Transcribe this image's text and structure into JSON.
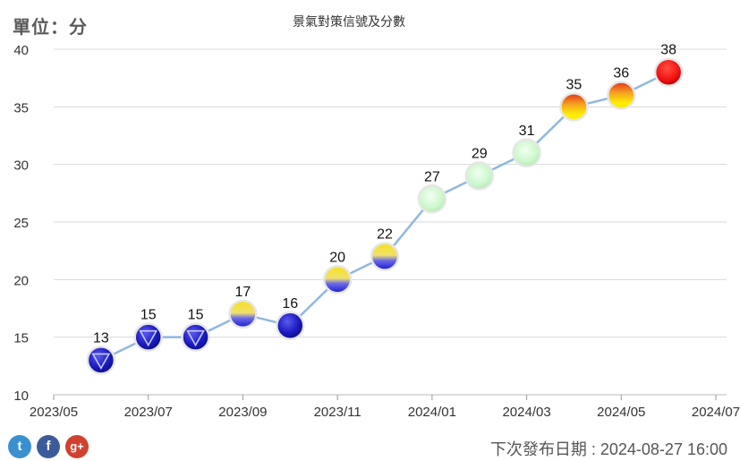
{
  "unit_label": "單位：分",
  "chart_data": {
    "type": "line",
    "title": "景氣對策信號及分數",
    "x": [
      "2023-06",
      "2023-07",
      "2023-08",
      "2023-09",
      "2023-10",
      "2023-11",
      "2023-12",
      "2024-01",
      "2024-02",
      "2024-03",
      "2024-04",
      "2024-05",
      "2024-06"
    ],
    "values": [
      13,
      15,
      15,
      17,
      16,
      20,
      22,
      27,
      29,
      31,
      35,
      36,
      38
    ],
    "signal_colors": [
      "blue",
      "blue",
      "blue",
      "yellow-blue",
      "blue",
      "yellow-blue",
      "yellow-blue",
      "green",
      "green",
      "green",
      "yellow-red",
      "yellow-red",
      "red"
    ],
    "x_tick_labels": [
      "2023/05",
      "2023/07",
      "2023/09",
      "2023/11",
      "2024/01",
      "2024/03",
      "2024/05",
      "2024/07"
    ],
    "y_ticks": [
      10,
      15,
      20,
      25,
      30,
      35,
      40
    ],
    "ylim": [
      10,
      40
    ],
    "xlabel": "",
    "ylabel": "",
    "grid": true,
    "line_color": "#8fb8e0"
  },
  "footer": {
    "release_date": "下次發布日期 : 2024-08-27 16:00",
    "social": {
      "twitter": "t",
      "facebook": "f",
      "gplus": "g+"
    }
  }
}
